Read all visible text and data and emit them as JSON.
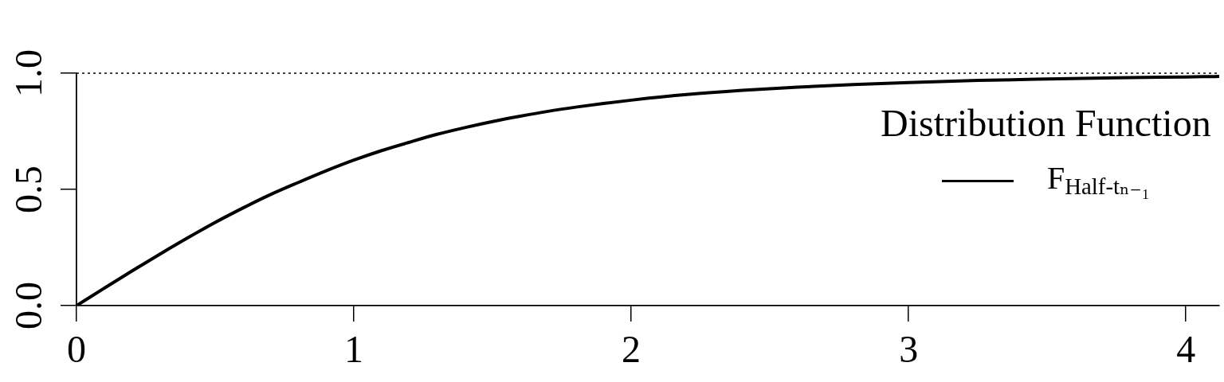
{
  "chart_data": {
    "type": "line",
    "legend_title": "Distribution Function",
    "legend": "top right",
    "x": [
      0,
      0.1,
      0.2,
      0.3,
      0.4,
      0.5,
      0.6,
      0.7,
      0.8,
      0.9,
      1.0,
      1.1,
      1.2,
      1.3,
      1.4,
      1.5,
      1.6,
      1.7,
      1.8,
      1.9,
      2.0,
      2.2,
      2.4,
      2.6,
      2.8,
      3.0,
      3.25,
      3.5,
      3.75,
      4.0,
      4.12
    ],
    "series": [
      {
        "name": "F$_{Half-tₙ₋₁}$",
        "color": "#000000",
        "values": [
          0,
          0.075,
          0.149,
          0.221,
          0.291,
          0.358,
          0.42,
          0.478,
          0.53,
          0.58,
          0.626,
          0.667,
          0.703,
          0.737,
          0.766,
          0.792,
          0.815,
          0.836,
          0.854,
          0.87,
          0.884,
          0.908,
          0.926,
          0.94,
          0.951,
          0.96,
          0.969,
          0.975,
          0.98,
          0.984,
          0.986
        ]
      }
    ],
    "xlim": [
      0,
      4.12
    ],
    "ylim": [
      0,
      1
    ],
    "xticks": [
      0,
      1,
      2,
      3,
      4
    ],
    "yticks": [
      {
        "value": 0,
        "label": "0.0"
      },
      0.5,
      {
        "value": 1,
        "label": "1.0"
      }
    ],
    "ref_lines": [
      {
        "axis": "y",
        "value": 1,
        "color": "#000000",
        "line_style": "dotted"
      }
    ]
  }
}
